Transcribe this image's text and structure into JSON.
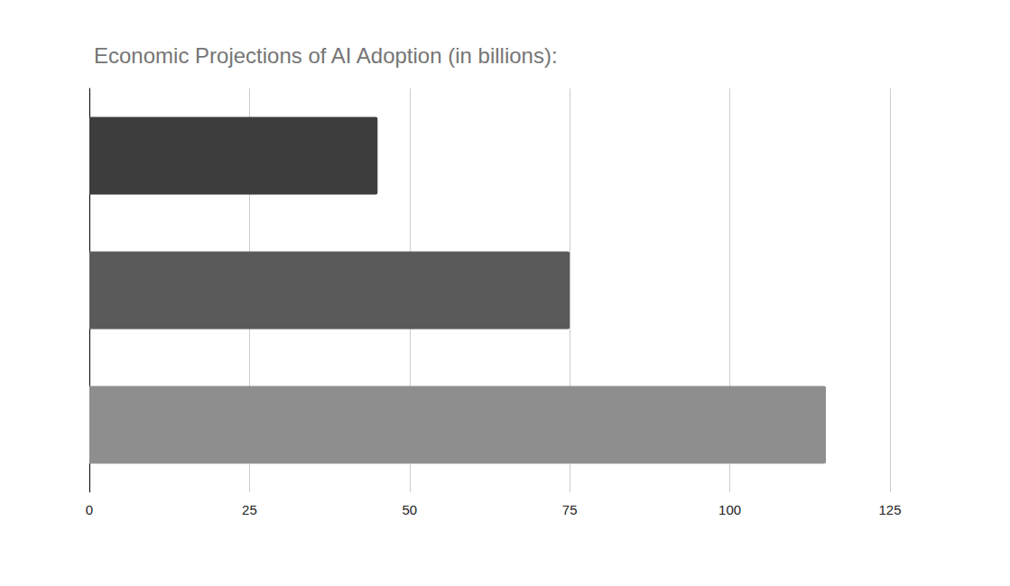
{
  "chart_data": {
    "type": "bar",
    "title": "Economic Projections of AI Adoption (in billions):",
    "orientation": "horizontal",
    "categories": [
      null,
      null,
      null
    ],
    "values": [
      45,
      75,
      115
    ],
    "colors": [
      "#3d3d3d",
      "#5a5a5a",
      "#8e8e8e"
    ],
    "xlim": [
      0,
      125
    ],
    "xticks": [
      0,
      25,
      50,
      75,
      100,
      125
    ],
    "grid": true,
    "tick_labels": "x"
  }
}
